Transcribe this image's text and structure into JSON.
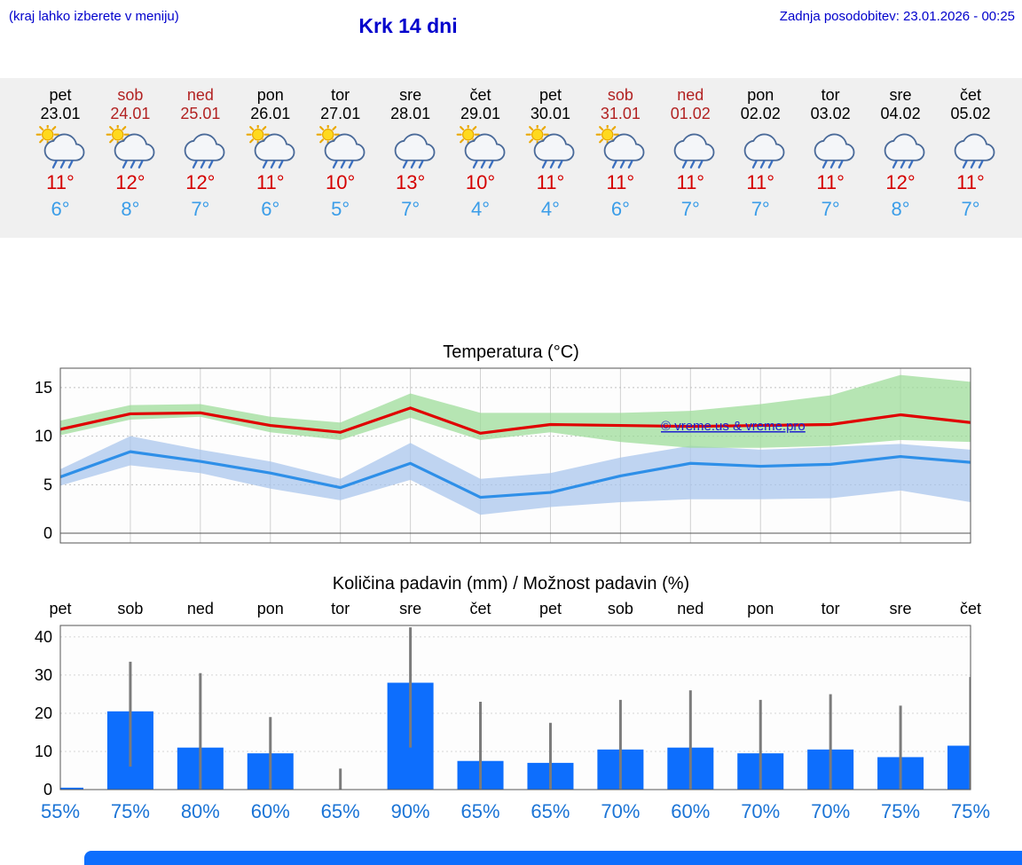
{
  "header": {
    "left_note": "(kraj lahko izberete v meniju)",
    "title": "Krk 14 dni",
    "last_update": "Zadnja posodobitev: 23.01.2026 - 00:25"
  },
  "colors": {
    "link_blue": "#0000cc",
    "high_red": "#d40000",
    "low_blue": "#3b9de8",
    "weekend_red": "#b22222",
    "prob_blue": "#1b74d6",
    "bar_blue": "#0d6efd",
    "whisker_gray": "#7b7b7b",
    "max_line_red": "#e00000",
    "min_line_blue": "#2e8fe8",
    "max_band_green": "#9edc9a",
    "min_band_blue": "#a9c6ec"
  },
  "forecast": {
    "days": [
      {
        "name": "pet",
        "date": "23.01",
        "weekend": false,
        "icon": "sun-cloud-rain",
        "high": "11°",
        "low": "6°"
      },
      {
        "name": "sob",
        "date": "24.01",
        "weekend": true,
        "icon": "sun-cloud-rain",
        "high": "12°",
        "low": "8°"
      },
      {
        "name": "ned",
        "date": "25.01",
        "weekend": true,
        "icon": "cloud-rain",
        "high": "12°",
        "low": "7°"
      },
      {
        "name": "pon",
        "date": "26.01",
        "weekend": false,
        "icon": "sun-cloud-rain",
        "high": "11°",
        "low": "6°"
      },
      {
        "name": "tor",
        "date": "27.01",
        "weekend": false,
        "icon": "sun-cloud-rain",
        "high": "10°",
        "low": "5°"
      },
      {
        "name": "sre",
        "date": "28.01",
        "weekend": false,
        "icon": "cloud-rain",
        "high": "13°",
        "low": "7°"
      },
      {
        "name": "čet",
        "date": "29.01",
        "weekend": false,
        "icon": "sun-cloud-rain",
        "high": "10°",
        "low": "4°"
      },
      {
        "name": "pet",
        "date": "30.01",
        "weekend": false,
        "icon": "sun-cloud-rain",
        "high": "11°",
        "low": "4°"
      },
      {
        "name": "sob",
        "date": "31.01",
        "weekend": true,
        "icon": "sun-cloud-rain",
        "high": "11°",
        "low": "6°"
      },
      {
        "name": "ned",
        "date": "01.02",
        "weekend": true,
        "icon": "cloud-rain",
        "high": "11°",
        "low": "7°"
      },
      {
        "name": "pon",
        "date": "02.02",
        "weekend": false,
        "icon": "cloud-rain",
        "high": "11°",
        "low": "7°"
      },
      {
        "name": "tor",
        "date": "03.02",
        "weekend": false,
        "icon": "cloud-rain",
        "high": "11°",
        "low": "7°"
      },
      {
        "name": "sre",
        "date": "04.02",
        "weekend": false,
        "icon": "cloud-rain",
        "high": "12°",
        "low": "8°"
      },
      {
        "name": "čet",
        "date": "05.02",
        "weekend": false,
        "icon": "cloud-rain",
        "high": "11°",
        "low": "7°"
      }
    ]
  },
  "chart_data": [
    {
      "type": "line",
      "title": "Temperatura (°C)",
      "x_categories": [
        "pet",
        "sob",
        "ned",
        "pon",
        "tor",
        "sre",
        "čet",
        "pet",
        "sob",
        "ned",
        "pon",
        "tor",
        "sre",
        "čet"
      ],
      "ylim": [
        -1,
        17
      ],
      "yticks": [
        0,
        5,
        10,
        15
      ],
      "grid": true,
      "watermark": "© vreme.us & vreme.pro",
      "series": [
        {
          "name": "max",
          "color": "#e00000",
          "values": [
            10.7,
            12.3,
            12.4,
            11.1,
            10.4,
            12.9,
            10.3,
            11.2,
            11.1,
            11.0,
            11.1,
            11.2,
            12.2,
            11.4
          ]
        },
        {
          "name": "min",
          "color": "#2e8fe8",
          "values": [
            5.8,
            8.4,
            7.4,
            6.2,
            4.7,
            7.2,
            3.7,
            4.2,
            5.9,
            7.2,
            6.9,
            7.1,
            7.9,
            7.3
          ]
        }
      ],
      "bands": [
        {
          "name": "min-range",
          "color": "#a9c6ec",
          "upper": [
            6.6,
            10.0,
            8.6,
            7.4,
            5.6,
            9.3,
            5.6,
            6.2,
            7.8,
            9.0,
            8.6,
            8.9,
            9.2,
            8.6
          ],
          "lower": [
            4.9,
            7.0,
            6.2,
            4.6,
            3.4,
            5.5,
            1.9,
            2.7,
            3.2,
            3.5,
            3.5,
            3.6,
            4.4,
            3.2
          ]
        },
        {
          "name": "max-range",
          "color": "#9edc9a",
          "upper": [
            11.6,
            13.2,
            13.3,
            12.0,
            11.4,
            14.4,
            12.4,
            12.4,
            12.4,
            12.6,
            13.3,
            14.2,
            16.3,
            15.6
          ],
          "lower": [
            10.1,
            11.7,
            12.0,
            10.4,
            9.6,
            11.9,
            9.6,
            10.4,
            9.4,
            8.8,
            8.8,
            9.0,
            9.6,
            9.4
          ]
        }
      ]
    },
    {
      "type": "bar",
      "title": "Količina padavin (mm) / Možnost padavin (%)",
      "x_categories": [
        "pet",
        "sob",
        "ned",
        "pon",
        "tor",
        "sre",
        "čet",
        "pet",
        "sob",
        "ned",
        "pon",
        "tor",
        "sre",
        "čet"
      ],
      "ylim": [
        0,
        43
      ],
      "yticks": [
        0,
        10,
        20,
        30,
        40
      ],
      "bar_color": "#0d6efd",
      "whisker_color": "#7b7b7b",
      "values": [
        0.5,
        20.5,
        11,
        9.5,
        0,
        28,
        7.5,
        7,
        10.5,
        11,
        9.5,
        10.5,
        8.5,
        11.5
      ],
      "whisker_top": [
        1,
        33.5,
        30.5,
        19,
        5.5,
        42.5,
        23,
        17.5,
        23.5,
        26,
        23.5,
        25,
        22,
        29.5
      ],
      "whisker_bottom": [
        0,
        6,
        0,
        -2,
        0,
        11,
        0,
        0,
        0,
        0,
        0,
        0,
        0,
        0
      ],
      "probabilities": [
        "55%",
        "75%",
        "80%",
        "60%",
        "65%",
        "90%",
        "65%",
        "65%",
        "70%",
        "60%",
        "70%",
        "70%",
        "75%",
        "75%"
      ]
    }
  ]
}
